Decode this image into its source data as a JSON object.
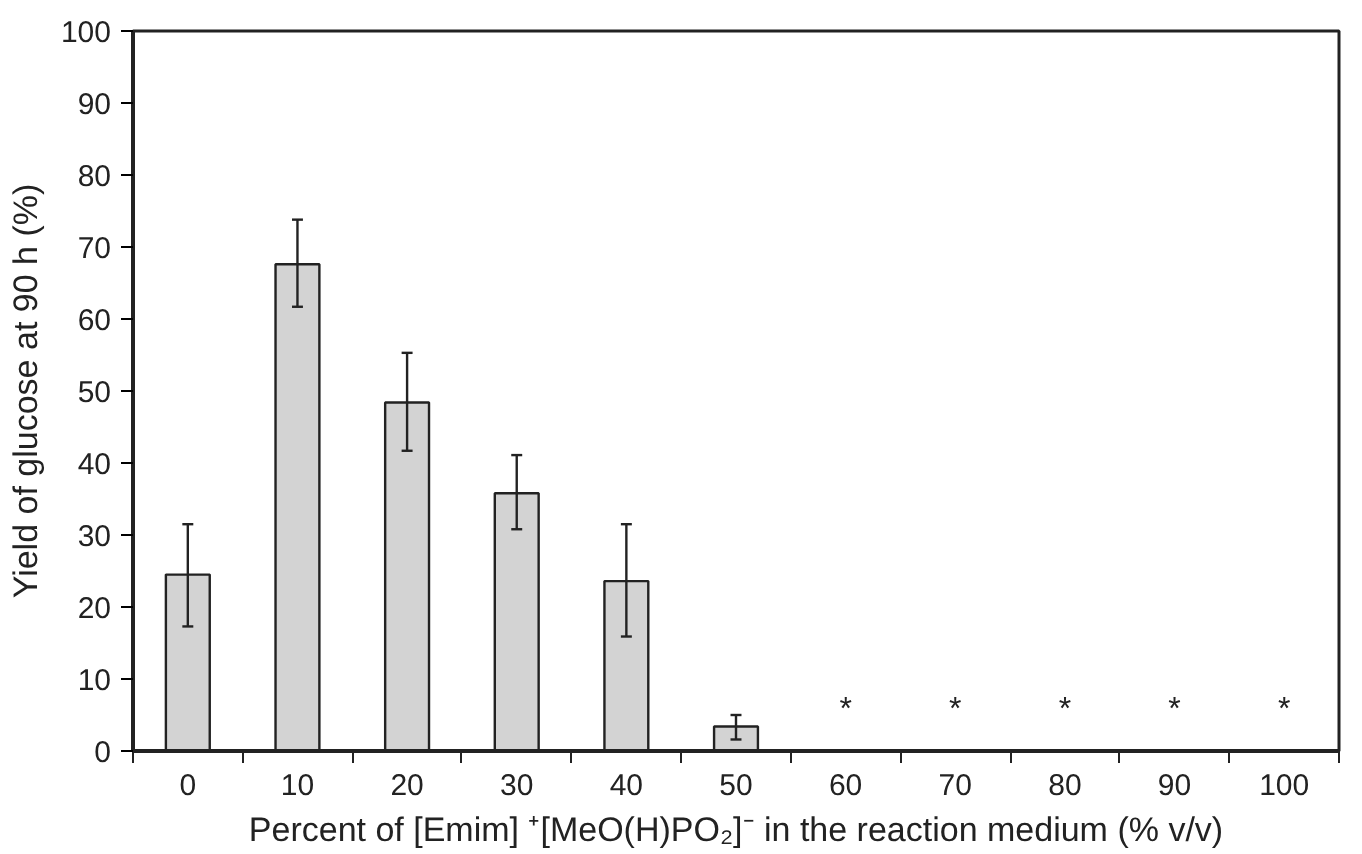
{
  "chart_data": {
    "type": "bar",
    "xlabel": "Percent of [Emim] ⁺[MeO(H)PO₂]⁻ in the reaction medium (% v/v)",
    "ylabel": "Yield of glucose at 90 h (%)",
    "categories": [
      "0",
      "10",
      "20",
      "30",
      "40",
      "50",
      "60",
      "70",
      "80",
      "90",
      "100"
    ],
    "values": [
      24.5,
      67.6,
      48.4,
      35.8,
      23.6,
      3.4,
      0,
      0,
      0,
      0,
      0
    ],
    "value_labels": [
      null,
      null,
      null,
      null,
      null,
      null,
      "*",
      "*",
      "*",
      "*",
      "*"
    ],
    "errors": [
      [
        17.3,
        31.5
      ],
      [
        61.7,
        73.8
      ],
      [
        41.7,
        55.3
      ],
      [
        30.8,
        41.1
      ],
      [
        15.9,
        31.5
      ],
      [
        1.6,
        5.0
      ],
      null,
      null,
      null,
      null,
      null
    ],
    "color": "#d3d3d3",
    "ylim": [
      0,
      100
    ],
    "yticks": [
      0,
      10,
      20,
      30,
      40,
      50,
      60,
      70,
      80,
      90,
      100
    ],
    "grid": false
  }
}
